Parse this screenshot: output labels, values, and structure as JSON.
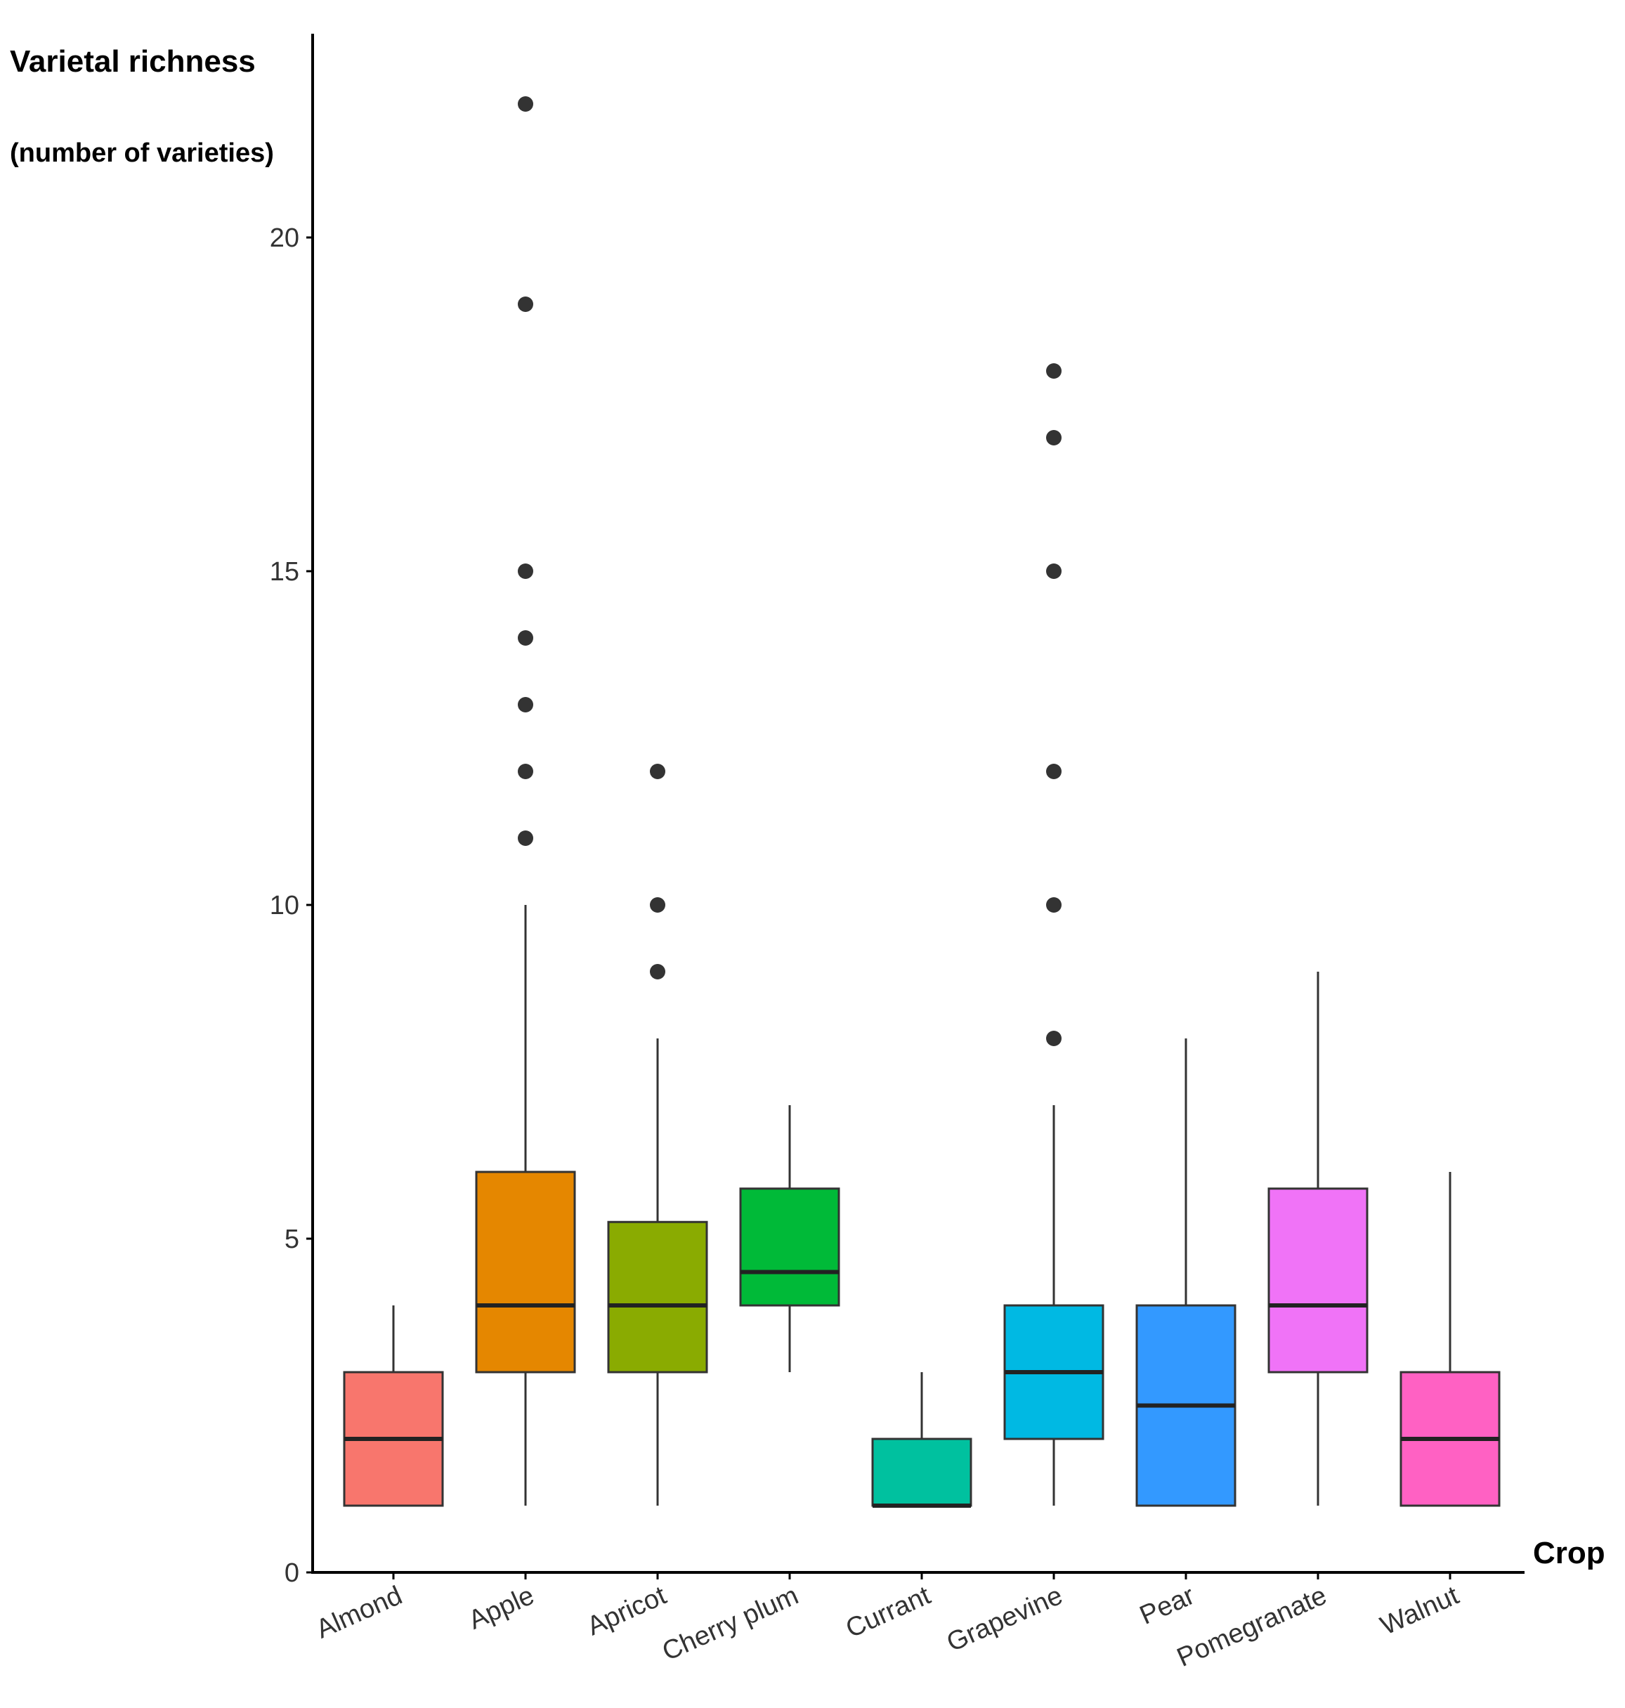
{
  "chart_data": {
    "type": "boxplot",
    "title": "",
    "ylabel": "Varietal richness",
    "ylabel_sub": "(number of varieties)",
    "xlabel": "Crop",
    "ylim": [
      0,
      23
    ],
    "yticks": [
      0,
      5,
      10,
      15,
      20
    ],
    "ytick_labels": [
      "0",
      "5",
      "10",
      "15",
      "20"
    ],
    "grid": false,
    "categories": [
      "Almond",
      "Apple",
      "Apricot",
      "Cherry plum",
      "Currant",
      "Grapevine",
      "Pear",
      "Pomegranate",
      "Walnut"
    ],
    "boxes": [
      {
        "name": "Almond",
        "color": "#F8766D",
        "q1": 1,
        "median": 2,
        "q3": 3,
        "whisker_low": 1,
        "whisker_high": 4,
        "outliers": []
      },
      {
        "name": "Apple",
        "color": "#E58700",
        "q1": 3,
        "median": 4,
        "q3": 6,
        "whisker_low": 1,
        "whisker_high": 10,
        "outliers": [
          11,
          12,
          13,
          14,
          15,
          19,
          22
        ]
      },
      {
        "name": "Apricot",
        "color": "#8AAB01",
        "q1": 3,
        "median": 4,
        "q3": 5.25,
        "whisker_low": 1,
        "whisker_high": 8,
        "outliers": [
          9,
          10,
          12
        ]
      },
      {
        "name": "Cherry plum",
        "color": "#00BA38",
        "q1": 4,
        "median": 4.5,
        "q3": 5.75,
        "whisker_low": 3,
        "whisker_high": 7,
        "outliers": []
      },
      {
        "name": "Currant",
        "color": "#00C19F",
        "q1": 1,
        "median": 1,
        "q3": 2,
        "whisker_low": 1,
        "whisker_high": 3,
        "outliers": []
      },
      {
        "name": "Grapevine",
        "color": "#00B9E3",
        "q1": 2,
        "median": 3,
        "q3": 4,
        "whisker_low": 1,
        "whisker_high": 7,
        "outliers": [
          8,
          10,
          12,
          15,
          17,
          18
        ]
      },
      {
        "name": "Pear",
        "color": "#3399FF",
        "q1": 1,
        "median": 2.5,
        "q3": 4,
        "whisker_low": 1,
        "whisker_high": 8,
        "outliers": []
      },
      {
        "name": "Pomegranate",
        "color": "#F073F7",
        "q1": 3,
        "median": 4,
        "q3": 5.75,
        "whisker_low": 1,
        "whisker_high": 9,
        "outliers": []
      },
      {
        "name": "Walnut",
        "color": "#FF61C3",
        "q1": 1,
        "median": 2,
        "q3": 3,
        "whisker_low": 1,
        "whisker_high": 6,
        "outliers": []
      }
    ]
  }
}
